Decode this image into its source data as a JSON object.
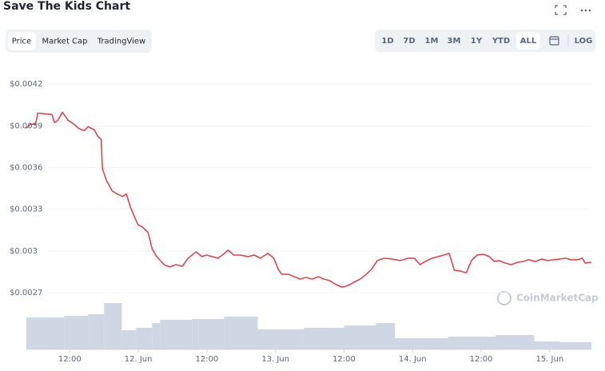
{
  "chart_data": {
    "type": "line",
    "title": "Save The Kids Chart",
    "tabs": [
      "Price",
      "Market Cap",
      "TradingView"
    ],
    "ranges": [
      "1D",
      "7D",
      "1M",
      "3M",
      "1Y",
      "YTD",
      "ALL",
      "LOG"
    ],
    "watermark": "CoinMarketCap",
    "color": "#ea3943",
    "grid": true,
    "xlim": [
      4.4,
      103.3
    ],
    "xticks": [
      {
        "value": 12,
        "label": "12:00"
      },
      {
        "value": 24,
        "label": "12. Jun"
      },
      {
        "value": 36,
        "label": "12:00"
      },
      {
        "value": 48,
        "label": "13. Jun"
      },
      {
        "value": 60,
        "label": "12:00"
      },
      {
        "value": 72,
        "label": "14. Jun"
      },
      {
        "value": 84,
        "label": "12:00"
      },
      {
        "value": 96,
        "label": "15. Jun"
      }
    ],
    "ylim": [
      0.00262,
      0.00423
    ],
    "yticks": [
      {
        "value": 0.0042,
        "label": "$0.0042"
      },
      {
        "value": 0.0039,
        "label": "$0.0039"
      },
      {
        "value": 0.0036,
        "label": "$0.0036"
      },
      {
        "value": 0.0033,
        "label": "$0.0033"
      },
      {
        "value": 0.003,
        "label": "$0.003"
      },
      {
        "value": 0.0027,
        "label": "$0.0027"
      }
    ],
    "x": [
      4.4,
      5.1,
      6.0,
      6.4,
      7.5,
      8.9,
      9.3,
      9.9,
      10.7,
      11.7,
      12.7,
      13.5,
      14.5,
      15.2,
      16.3,
      16.9,
      17.5,
      17.7,
      18.4,
      19.4,
      20.3,
      21.2,
      21.9,
      22.6,
      23.3,
      23.9,
      24.7,
      25.7,
      26.4,
      27.2,
      28.5,
      29.5,
      30.6,
      31.7,
      32.7,
      33.4,
      34.1,
      35.1,
      35.9,
      36.9,
      37.9,
      38.7,
      39.7,
      40.7,
      41.8,
      43.2,
      44.3,
      45.3,
      46.7,
      47.7,
      48.5,
      49.1,
      50.2,
      51.3,
      52.3,
      53.3,
      54.4,
      55.5,
      56.5,
      57.5,
      58.6,
      59.7,
      60.7,
      61.7,
      62.8,
      63.9,
      64.9,
      65.8,
      67.0,
      68.4,
      69.8,
      71.2,
      72.3,
      73.3,
      74.2,
      75.4,
      76.5,
      77.5,
      78.4,
      79.3,
      80.3,
      81.4,
      82.3,
      83.3,
      84.4,
      85.4,
      86.3,
      87.2,
      88.2,
      89.3,
      90.4,
      91.4,
      92.3,
      93.5,
      94.6,
      95.6,
      96.6,
      97.7,
      98.8,
      99.8,
      100.8,
      101.7,
      102.2,
      103.3
    ],
    "values": [
      0.003883,
      0.003912,
      0.003912,
      0.003992,
      0.003987,
      0.003981,
      0.003923,
      0.00394,
      0.003998,
      0.00394,
      0.003912,
      0.003883,
      0.003865,
      0.003894,
      0.003871,
      0.003825,
      0.003802,
      0.003594,
      0.003508,
      0.003433,
      0.00341,
      0.003392,
      0.00341,
      0.003317,
      0.003248,
      0.00319,
      0.003173,
      0.003133,
      0.003017,
      0.00296,
      0.002902,
      0.002885,
      0.002902,
      0.00289,
      0.002948,
      0.002971,
      0.002994,
      0.00296,
      0.002971,
      0.00296,
      0.002948,
      0.002971,
      0.003006,
      0.002971,
      0.002971,
      0.00296,
      0.002971,
      0.002948,
      0.002983,
      0.002948,
      0.002867,
      0.002833,
      0.002833,
      0.002815,
      0.002798,
      0.00281,
      0.002798,
      0.002815,
      0.002798,
      0.002787,
      0.002758,
      0.00274,
      0.002752,
      0.002775,
      0.002798,
      0.002833,
      0.002873,
      0.002931,
      0.002948,
      0.002942,
      0.002931,
      0.002948,
      0.002948,
      0.002902,
      0.002925,
      0.002948,
      0.00296,
      0.002971,
      0.002983,
      0.002862,
      0.002856,
      0.002844,
      0.002931,
      0.002971,
      0.002977,
      0.00296,
      0.002925,
      0.002931,
      0.002913,
      0.002902,
      0.002919,
      0.002925,
      0.002937,
      0.002925,
      0.002942,
      0.002931,
      0.002937,
      0.002942,
      0.002948,
      0.002937,
      0.002937,
      0.002948,
      0.002913,
      0.002919
    ],
    "volume": {
      "color": "#cfd6e4",
      "x": [
        4.4,
        11.0,
        15.2,
        18.0,
        21.1,
        23.6,
        26.4,
        27.8,
        33.4,
        39.0,
        44.9,
        53.0,
        60.0,
        65.6,
        68.9,
        78.2,
        86.5,
        93.3,
        97.7
      ],
      "values": [
        40,
        42,
        44,
        58,
        24,
        27,
        33,
        37,
        38,
        41,
        25,
        27,
        30,
        33,
        14,
        16,
        18,
        10,
        9
      ]
    }
  }
}
